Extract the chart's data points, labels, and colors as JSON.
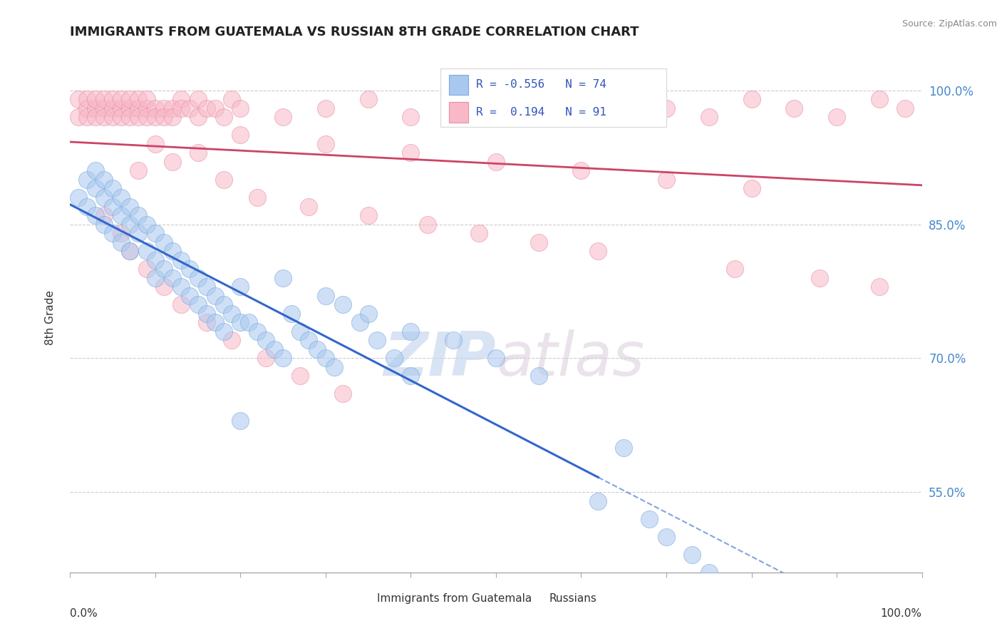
{
  "title": "IMMIGRANTS FROM GUATEMALA VS RUSSIAN 8TH GRADE CORRELATION CHART",
  "ylabel": "8th Grade",
  "source": "Source: ZipAtlas.com",
  "watermark_zip": "ZIP",
  "watermark_atlas": "atlas",
  "legend_blue_label": "Immigrants from Guatemala",
  "legend_pink_label": "Russians",
  "R_blue": -0.556,
  "N_blue": 74,
  "R_pink": 0.194,
  "N_pink": 91,
  "xlim": [
    0.0,
    1.0
  ],
  "ylim": [
    0.46,
    1.03
  ],
  "yticks": [
    0.55,
    0.7,
    0.85,
    1.0
  ],
  "ytick_labels": [
    "55.0%",
    "70.0%",
    "85.0%",
    "100.0%"
  ],
  "xticks": [
    0.0,
    0.1,
    0.2,
    0.3,
    0.4,
    0.5,
    0.6,
    0.7,
    0.8,
    0.9,
    1.0
  ],
  "blue_color": "#a8c8f0",
  "blue_edge_color": "#7aabdc",
  "blue_line_color": "#3366cc",
  "pink_color": "#f8b8c8",
  "pink_edge_color": "#e890a8",
  "pink_line_color": "#cc4466",
  "background_color": "#ffffff",
  "grid_color": "#cccccc",
  "blue_scatter_x": [
    0.01,
    0.02,
    0.02,
    0.03,
    0.03,
    0.03,
    0.04,
    0.04,
    0.04,
    0.05,
    0.05,
    0.05,
    0.06,
    0.06,
    0.06,
    0.07,
    0.07,
    0.07,
    0.08,
    0.08,
    0.09,
    0.09,
    0.1,
    0.1,
    0.1,
    0.11,
    0.11,
    0.12,
    0.12,
    0.13,
    0.13,
    0.14,
    0.14,
    0.15,
    0.15,
    0.16,
    0.16,
    0.17,
    0.17,
    0.18,
    0.18,
    0.19,
    0.2,
    0.2,
    0.21,
    0.22,
    0.23,
    0.24,
    0.25,
    0.26,
    0.27,
    0.28,
    0.29,
    0.3,
    0.31,
    0.32,
    0.34,
    0.36,
    0.38,
    0.4,
    0.25,
    0.3,
    0.35,
    0.4,
    0.45,
    0.5,
    0.55,
    0.2,
    0.62,
    0.65,
    0.68,
    0.7,
    0.73,
    0.75
  ],
  "blue_scatter_y": [
    0.88,
    0.9,
    0.87,
    0.91,
    0.89,
    0.86,
    0.9,
    0.88,
    0.85,
    0.89,
    0.87,
    0.84,
    0.88,
    0.86,
    0.83,
    0.87,
    0.85,
    0.82,
    0.86,
    0.84,
    0.85,
    0.82,
    0.84,
    0.81,
    0.79,
    0.83,
    0.8,
    0.82,
    0.79,
    0.81,
    0.78,
    0.8,
    0.77,
    0.79,
    0.76,
    0.78,
    0.75,
    0.77,
    0.74,
    0.76,
    0.73,
    0.75,
    0.78,
    0.74,
    0.74,
    0.73,
    0.72,
    0.71,
    0.7,
    0.75,
    0.73,
    0.72,
    0.71,
    0.7,
    0.69,
    0.76,
    0.74,
    0.72,
    0.7,
    0.68,
    0.79,
    0.77,
    0.75,
    0.73,
    0.72,
    0.7,
    0.68,
    0.63,
    0.54,
    0.6,
    0.52,
    0.5,
    0.48,
    0.46
  ],
  "pink_scatter_x": [
    0.01,
    0.01,
    0.02,
    0.02,
    0.02,
    0.03,
    0.03,
    0.03,
    0.04,
    0.04,
    0.04,
    0.05,
    0.05,
    0.05,
    0.06,
    0.06,
    0.06,
    0.07,
    0.07,
    0.07,
    0.08,
    0.08,
    0.08,
    0.09,
    0.09,
    0.09,
    0.1,
    0.1,
    0.11,
    0.11,
    0.12,
    0.12,
    0.13,
    0.13,
    0.14,
    0.15,
    0.15,
    0.16,
    0.17,
    0.18,
    0.19,
    0.2,
    0.25,
    0.3,
    0.35,
    0.4,
    0.45,
    0.5,
    0.55,
    0.6,
    0.65,
    0.7,
    0.75,
    0.8,
    0.85,
    0.9,
    0.95,
    0.98,
    0.2,
    0.3,
    0.4,
    0.5,
    0.6,
    0.7,
    0.8,
    0.1,
    0.15,
    0.08,
    0.12,
    0.18,
    0.22,
    0.28,
    0.35,
    0.42,
    0.48,
    0.55,
    0.62,
    0.78,
    0.88,
    0.95,
    0.04,
    0.06,
    0.07,
    0.09,
    0.11,
    0.13,
    0.16,
    0.19,
    0.23,
    0.27,
    0.32
  ],
  "pink_scatter_y": [
    0.99,
    0.97,
    0.98,
    0.97,
    0.99,
    0.98,
    0.97,
    0.99,
    0.98,
    0.97,
    0.99,
    0.98,
    0.97,
    0.99,
    0.98,
    0.97,
    0.99,
    0.98,
    0.97,
    0.99,
    0.98,
    0.97,
    0.99,
    0.98,
    0.97,
    0.99,
    0.98,
    0.97,
    0.98,
    0.97,
    0.98,
    0.97,
    0.99,
    0.98,
    0.98,
    0.97,
    0.99,
    0.98,
    0.98,
    0.97,
    0.99,
    0.98,
    0.97,
    0.98,
    0.99,
    0.97,
    0.98,
    0.99,
    0.97,
    0.98,
    0.99,
    0.98,
    0.97,
    0.99,
    0.98,
    0.97,
    0.99,
    0.98,
    0.95,
    0.94,
    0.93,
    0.92,
    0.91,
    0.9,
    0.89,
    0.94,
    0.93,
    0.91,
    0.92,
    0.9,
    0.88,
    0.87,
    0.86,
    0.85,
    0.84,
    0.83,
    0.82,
    0.8,
    0.79,
    0.78,
    0.86,
    0.84,
    0.82,
    0.8,
    0.78,
    0.76,
    0.74,
    0.72,
    0.7,
    0.68,
    0.66
  ],
  "blue_line_x_start": 0.0,
  "blue_line_x_solid_end": 0.62,
  "blue_line_x_end": 1.0,
  "pink_line_x_start": 0.0,
  "pink_line_x_end": 1.0
}
